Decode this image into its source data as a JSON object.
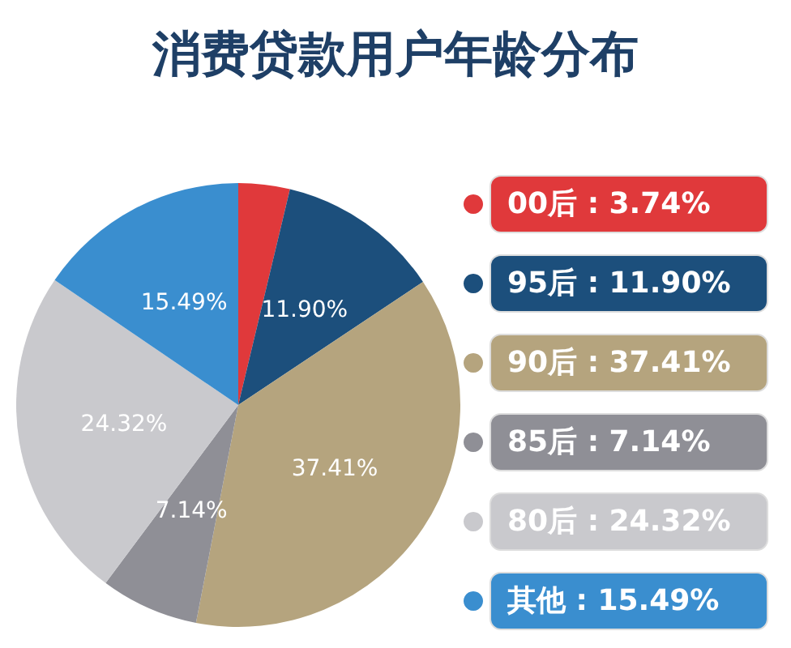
{
  "chart_data": {
    "type": "pie",
    "title": "消费贷款用户年龄分布",
    "categories": [
      "00后",
      "95后",
      "90后",
      "85后",
      "80后",
      "其他"
    ],
    "values": [
      3.74,
      11.9,
      37.41,
      7.14,
      24.32,
      15.49
    ],
    "value_labels": [
      "3.74%",
      "11.90%",
      "37.41%",
      "7.14%",
      "24.32%",
      "15.49%"
    ],
    "colors": [
      "#e0393b",
      "#1c4f7c",
      "#b5a47e",
      "#8f8f96",
      "#c9c9cd",
      "#3a8ecf"
    ],
    "legend": "right"
  }
}
